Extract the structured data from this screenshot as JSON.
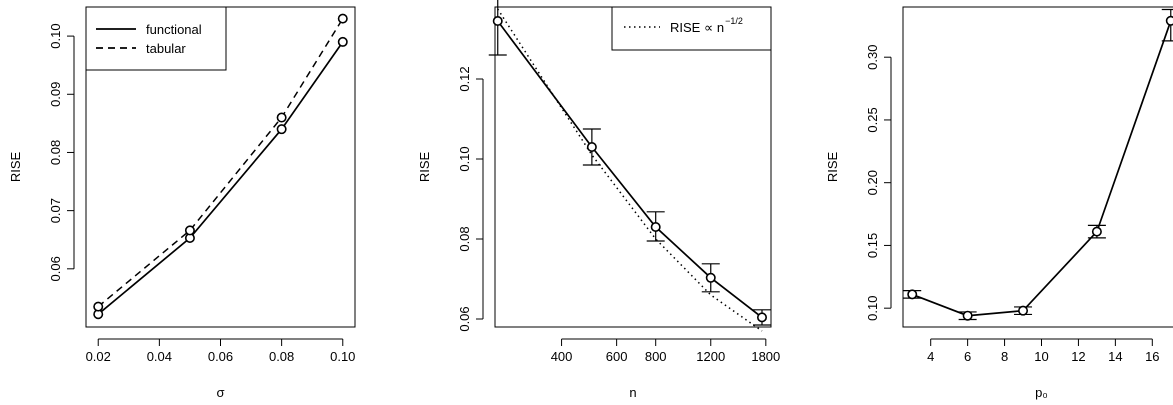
{
  "chart_data": [
    {
      "type": "line",
      "xlabel": "σ",
      "ylabel": "RISE",
      "xlim": [
        0.016,
        0.104
      ],
      "ylim": [
        0.05,
        0.105
      ],
      "xticks": [
        {
          "v": 0.02,
          "label": "0.02"
        },
        {
          "v": 0.04,
          "label": "0.04"
        },
        {
          "v": 0.06,
          "label": "0.06"
        },
        {
          "v": 0.08,
          "label": "0.08"
        },
        {
          "v": 0.1,
          "label": "0.10"
        }
      ],
      "yticks": [
        {
          "v": 0.06,
          "label": "0.06"
        },
        {
          "v": 0.07,
          "label": "0.07"
        },
        {
          "v": 0.08,
          "label": "0.08"
        },
        {
          "v": 0.09,
          "label": "0.09"
        },
        {
          "v": 0.1,
          "label": "0.10"
        }
      ],
      "legend": {
        "position": "top-left",
        "boxed": true
      },
      "series": [
        {
          "name": "functional",
          "line": "solid",
          "x": [
            0.02,
            0.05,
            0.08,
            0.1
          ],
          "y": [
            0.0522,
            0.0653,
            0.084,
            0.099
          ]
        },
        {
          "name": "tabular",
          "line": "dashed",
          "x": [
            0.02,
            0.05,
            0.08,
            0.1
          ],
          "y": [
            0.0535,
            0.0666,
            0.086,
            0.103
          ]
        }
      ]
    },
    {
      "type": "line",
      "xlabel": "n",
      "ylabel": "RISE",
      "xlim": [
        245,
        1870
      ],
      "ylim": [
        0.058,
        0.138
      ],
      "xscale": "log",
      "xticks": [
        {
          "v": 400,
          "label": "400"
        },
        {
          "v": 600,
          "label": "600"
        },
        {
          "v": 800,
          "label": "800"
        },
        {
          "v": 1200,
          "label": "1200"
        },
        {
          "v": 1800,
          "label": "1800"
        }
      ],
      "yticks": [
        {
          "v": 0.06,
          "label": "0.06"
        },
        {
          "v": 0.08,
          "label": "0.08"
        },
        {
          "v": 0.1,
          "label": "0.10"
        },
        {
          "v": 0.12,
          "label": "0.12"
        }
      ],
      "legend": {
        "position": "top-right",
        "boxed": true
      },
      "series": [
        {
          "line": "solid",
          "points": true,
          "x": [
            250,
            500,
            800,
            1200,
            1750
          ],
          "y": [
            0.1345,
            0.103,
            0.083,
            0.0703,
            0.0604
          ],
          "err_low": [
            0.126,
            0.0985,
            0.0795,
            0.0668,
            0.0585
          ],
          "err_high": [
            0.143,
            0.1075,
            0.0868,
            0.0738,
            0.0623
          ]
        },
        {
          "name": "RISE ∝ n",
          "name_sup": "−1/2",
          "line": "dotted",
          "x": [
            250,
            500,
            800,
            1200,
            1750
          ],
          "y": [
            0.1375,
            0.101,
            0.08,
            0.066,
            0.057
          ]
        }
      ]
    },
    {
      "type": "line",
      "xlabel": "p₀",
      "ylabel": "RISE",
      "xlim": [
        2.5,
        17.5
      ],
      "ylim": [
        0.085,
        0.34
      ],
      "xticks": [
        {
          "v": 4,
          "label": "4"
        },
        {
          "v": 6,
          "label": "6"
        },
        {
          "v": 8,
          "label": "8"
        },
        {
          "v": 10,
          "label": "10"
        },
        {
          "v": 12,
          "label": "12"
        },
        {
          "v": 14,
          "label": "14"
        },
        {
          "v": 16,
          "label": "16"
        }
      ],
      "yticks": [
        {
          "v": 0.1,
          "label": "0.10"
        },
        {
          "v": 0.15,
          "label": "0.15"
        },
        {
          "v": 0.2,
          "label": "0.20"
        },
        {
          "v": 0.25,
          "label": "0.25"
        },
        {
          "v": 0.3,
          "label": "0.30"
        }
      ],
      "series": [
        {
          "line": "solid",
          "points": true,
          "x": [
            3,
            6,
            9,
            13,
            17
          ],
          "y": [
            0.111,
            0.094,
            0.098,
            0.161,
            0.329
          ],
          "err_low": [
            0.108,
            0.091,
            0.095,
            0.156,
            0.313
          ],
          "err_high": [
            0.114,
            0.097,
            0.101,
            0.166,
            0.338
          ]
        }
      ]
    }
  ]
}
